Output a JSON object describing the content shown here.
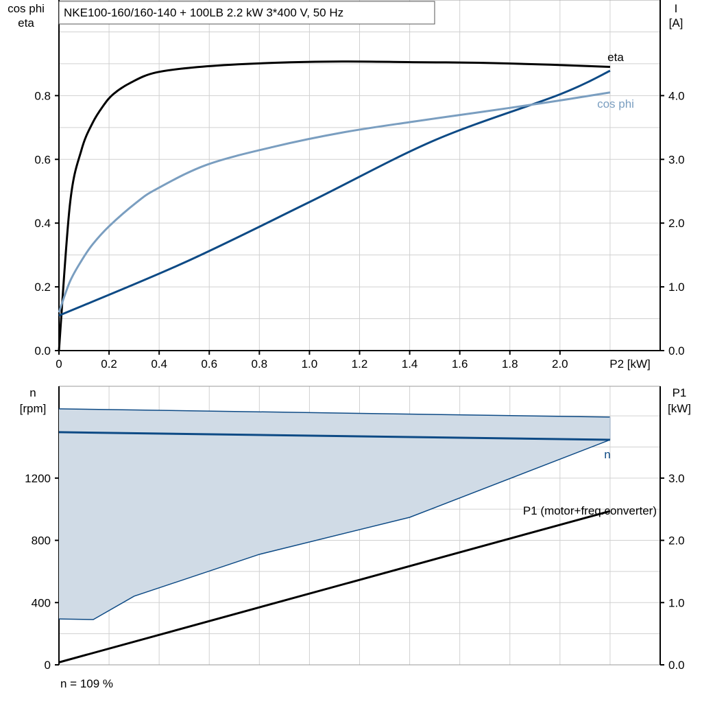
{
  "title": "NKE100-160/160-140 + 100LB   2.2 kW   3*400 V, 50 Hz",
  "footer": "n = 109 %",
  "colors": {
    "eta": "#000000",
    "I": "#0d4a85",
    "cos_phi": "#7a9ec0",
    "n": "#0d4a85",
    "band_fill": "#d0dbe6",
    "P1": "#000000",
    "grid": "#d0d0d0"
  },
  "chart_data": [
    {
      "type": "line",
      "title": "NKE100-160/160-140 + 100LB   2.2 kW   3*400 V, 50 Hz",
      "xlabel": "P2 [kW]",
      "ylabel_left": [
        "cos phi",
        "eta"
      ],
      "ylabel_right": [
        "I",
        "[A]"
      ],
      "xlim": [
        0,
        2.4
      ],
      "ylim_left": [
        0,
        1.1
      ],
      "ylim_right": [
        0,
        5.5
      ],
      "x_ticks": [
        "0",
        "0.2",
        "0.4",
        "0.6",
        "0.8",
        "1.0",
        "1.2",
        "1.4",
        "1.6",
        "1.8",
        "2.0"
      ],
      "y_ticks_left": [
        "0.0",
        "0.2",
        "0.4",
        "0.6",
        "0.8"
      ],
      "y_ticks_right": [
        "0.0",
        "1.0",
        "2.0",
        "3.0",
        "4.0"
      ],
      "grid": true,
      "series": [
        {
          "name": "eta",
          "axis": "left",
          "x": [
            0,
            0.044,
            0.09,
            0.134,
            0.175,
            0.216,
            0.285,
            0.39,
            0.59,
            0.86,
            1.13,
            1.41,
            1.68,
            1.96,
            2.2
          ],
          "y": [
            0,
            0.46,
            0.63,
            0.714,
            0.766,
            0.804,
            0.84,
            0.873,
            0.892,
            0.903,
            0.907,
            0.905,
            0.903,
            0.897,
            0.89
          ]
        },
        {
          "name": "I",
          "axis": "right",
          "x": [
            0,
            0.5,
            1.0,
            1.5,
            2.0,
            2.2
          ],
          "y": [
            0.55,
            1.38,
            2.33,
            3.3,
            4.02,
            4.39
          ]
        },
        {
          "name": "cos phi",
          "axis": "left",
          "x": [
            0,
            0.044,
            0.093,
            0.134,
            0.2,
            0.31,
            0.39,
            0.59,
            0.86,
            1.13,
            1.41,
            1.68,
            1.96,
            2.2
          ],
          "y": [
            0.12,
            0.217,
            0.286,
            0.333,
            0.39,
            0.465,
            0.507,
            0.583,
            0.64,
            0.684,
            0.718,
            0.748,
            0.78,
            0.81
          ]
        }
      ]
    },
    {
      "type": "area",
      "xlim": [
        0,
        2.4
      ],
      "ylabel_left": [
        "n",
        "[rpm]"
      ],
      "ylabel_right": [
        "P1",
        "[kW]"
      ],
      "ylim_left": [
        0,
        1790
      ],
      "ylim_right": [
        0,
        4.475
      ],
      "y_ticks_left": [
        "0",
        "400",
        "800",
        "1200"
      ],
      "y_ticks_right": [
        "0.0",
        "1.0",
        "2.0",
        "3.0"
      ],
      "grid": true,
      "band_upper": {
        "x": [
          0,
          2.2
        ],
        "y": [
          1645,
          1592
        ]
      },
      "band_lower": {
        "x": [
          0,
          0.137,
          0.3,
          0.8,
          1.4,
          2.2
        ],
        "y": [
          295,
          291,
          441,
          710,
          948,
          1446
        ]
      },
      "series": [
        {
          "name": "n",
          "axis": "left",
          "x": [
            0,
            2.2
          ],
          "y": [
            1495,
            1446
          ]
        },
        {
          "name": "P1 (motor+freq.converter)",
          "axis": "right",
          "x": [
            0,
            2.2
          ],
          "y": [
            0.04,
            2.47
          ]
        }
      ]
    }
  ]
}
